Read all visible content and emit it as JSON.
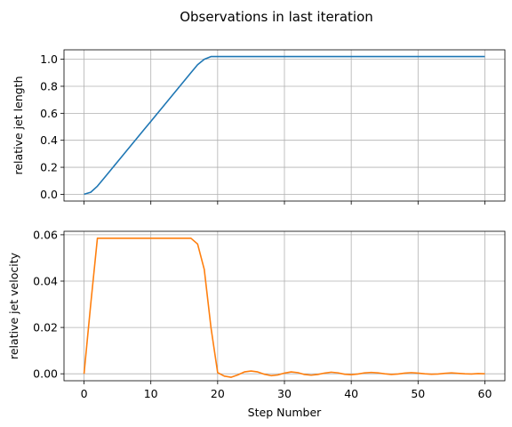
{
  "figure_title": "Observations in last iteration",
  "chart_data": [
    {
      "type": "line",
      "title": "",
      "xlabel": "",
      "ylabel": "relative jet length",
      "xlim": [
        -3,
        63
      ],
      "ylim": [
        -0.05,
        1.07
      ],
      "xticks": [
        0,
        10,
        20,
        30,
        40,
        50,
        60
      ],
      "yticks": [
        "0.0",
        "0.2",
        "0.4",
        "0.6",
        "0.8",
        "1.0"
      ],
      "grid": true,
      "show_xtick_labels": false,
      "series": [
        {
          "color": "#1f77b4",
          "x": [
            0,
            1,
            2,
            3,
            4,
            5,
            6,
            7,
            8,
            9,
            10,
            11,
            12,
            13,
            14,
            15,
            16,
            17,
            18,
            19,
            20,
            25,
            30,
            35,
            40,
            45,
            50,
            55,
            60
          ],
          "y": [
            0.0,
            0.015,
            0.06,
            0.12,
            0.18,
            0.24,
            0.3,
            0.36,
            0.42,
            0.48,
            0.54,
            0.6,
            0.66,
            0.72,
            0.78,
            0.84,
            0.9,
            0.96,
            1.0,
            1.02,
            1.02,
            1.02,
            1.02,
            1.02,
            1.02,
            1.02,
            1.02,
            1.02,
            1.02
          ]
        }
      ]
    },
    {
      "type": "line",
      "title": "",
      "xlabel": "Step Number",
      "ylabel": "relative jet velocity",
      "xlim": [
        -3,
        63
      ],
      "ylim": [
        -0.003,
        0.0615
      ],
      "xticks": [
        0,
        10,
        20,
        30,
        40,
        50,
        60
      ],
      "yticks": [
        "0.00",
        "0.02",
        "0.04",
        "0.06"
      ],
      "grid": true,
      "show_xtick_labels": true,
      "series": [
        {
          "color": "#ff7f0e",
          "x": [
            0,
            1,
            2,
            3,
            5,
            8,
            10,
            12,
            14,
            16,
            17,
            18,
            19,
            20,
            21,
            22,
            23,
            24,
            25,
            26,
            27,
            28,
            29,
            30,
            31,
            32,
            33,
            34,
            35,
            36,
            37,
            38,
            39,
            40,
            41,
            42,
            43,
            44,
            45,
            46,
            47,
            48,
            49,
            50,
            51,
            52,
            53,
            54,
            55,
            56,
            57,
            58,
            59,
            60
          ],
          "y": [
            0.0,
            0.03,
            0.0585,
            0.0585,
            0.0585,
            0.0585,
            0.0585,
            0.0585,
            0.0585,
            0.0585,
            0.056,
            0.045,
            0.02,
            0.0005,
            -0.001,
            -0.0015,
            -0.0005,
            0.0008,
            0.0012,
            0.0008,
            -0.0002,
            -0.0008,
            -0.0005,
            0.0003,
            0.0008,
            0.0005,
            -0.0003,
            -0.0006,
            -0.0003,
            0.0003,
            0.0007,
            0.0004,
            -0.0002,
            -0.0004,
            -0.0001,
            0.0004,
            0.0006,
            0.0004,
            0.0,
            -0.0003,
            -0.0001,
            0.0003,
            0.0005,
            0.0003,
            0.0,
            -0.0002,
            -0.0001,
            0.0002,
            0.0004,
            0.0002,
            0.0,
            -0.0001,
            0.0001,
            0.0
          ]
        }
      ]
    }
  ]
}
